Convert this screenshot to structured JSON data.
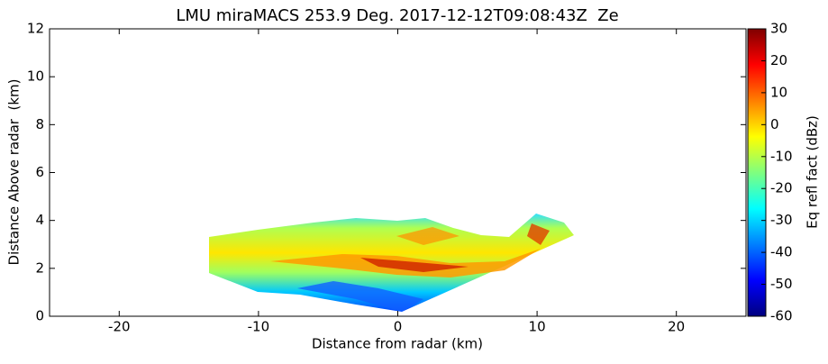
{
  "chart_data": {
    "type": "heatmap",
    "title": "LMU miraMACS 253.9 Deg. 2017-12-12T09:08:43Z  Ze",
    "xlabel": "Distance from radar (km)",
    "ylabel": "Distance Above radar  (km)",
    "xlim": [
      -25,
      25
    ],
    "xticks": [
      -20,
      -10,
      0,
      10,
      20
    ],
    "ylim": [
      0,
      12
    ],
    "yticks": [
      0,
      2,
      4,
      6,
      8,
      10,
      12
    ],
    "colorbar": {
      "label": "Eq refl fact (dBz)",
      "lim": [
        -60,
        30
      ],
      "ticks": [
        -60,
        -50,
        -40,
        -30,
        -20,
        -10,
        0,
        10,
        20,
        30
      ],
      "colors": [
        "#00007f",
        "#0000ff",
        "#007fff",
        "#00ffff",
        "#7fff7f",
        "#ffff00",
        "#ff7f00",
        "#ff0000",
        "#7f0000"
      ]
    }
  }
}
